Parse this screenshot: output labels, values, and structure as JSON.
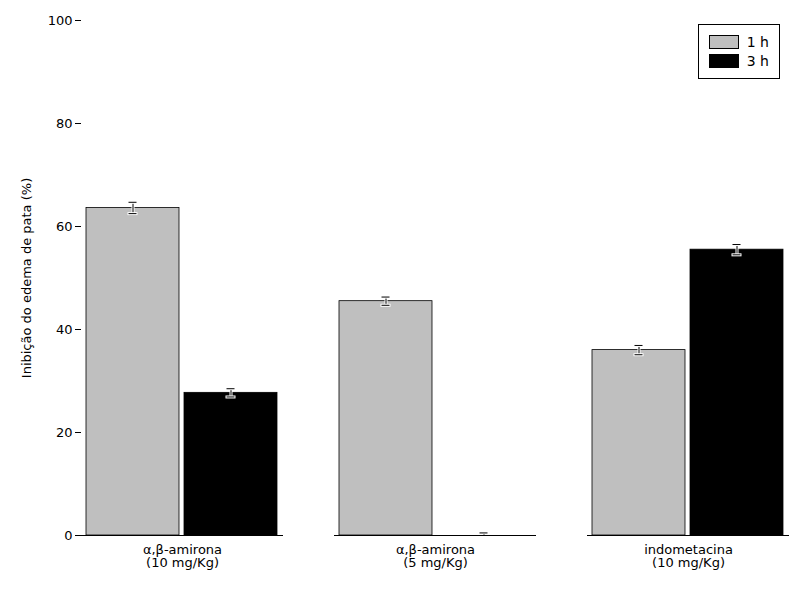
{
  "chart_data": {
    "type": "bar",
    "categories": [
      "α,β-amirona\n(10 mg/Kg)",
      "α,β-amirona\n(5 mg/Kg)",
      "indometacina\n(10 mg/Kg)"
    ],
    "series": [
      {
        "name": "1 h",
        "color": "#bfbfbf",
        "values": [
          63.6,
          45.5,
          36.0
        ],
        "errors": [
          1.1,
          0.8,
          0.9
        ]
      },
      {
        "name": "3 h",
        "color": "#000000",
        "values": [
          27.7,
          0.0,
          55.5
        ],
        "errors": [
          0.8,
          0.5,
          1.0
        ]
      }
    ],
    "y_label": "Inibição do edema de pata (%)",
    "ylim": [
      0,
      100
    ],
    "yticks": [
      0,
      20,
      40,
      60,
      80,
      100
    ],
    "grid": false,
    "legend": "upper right"
  }
}
